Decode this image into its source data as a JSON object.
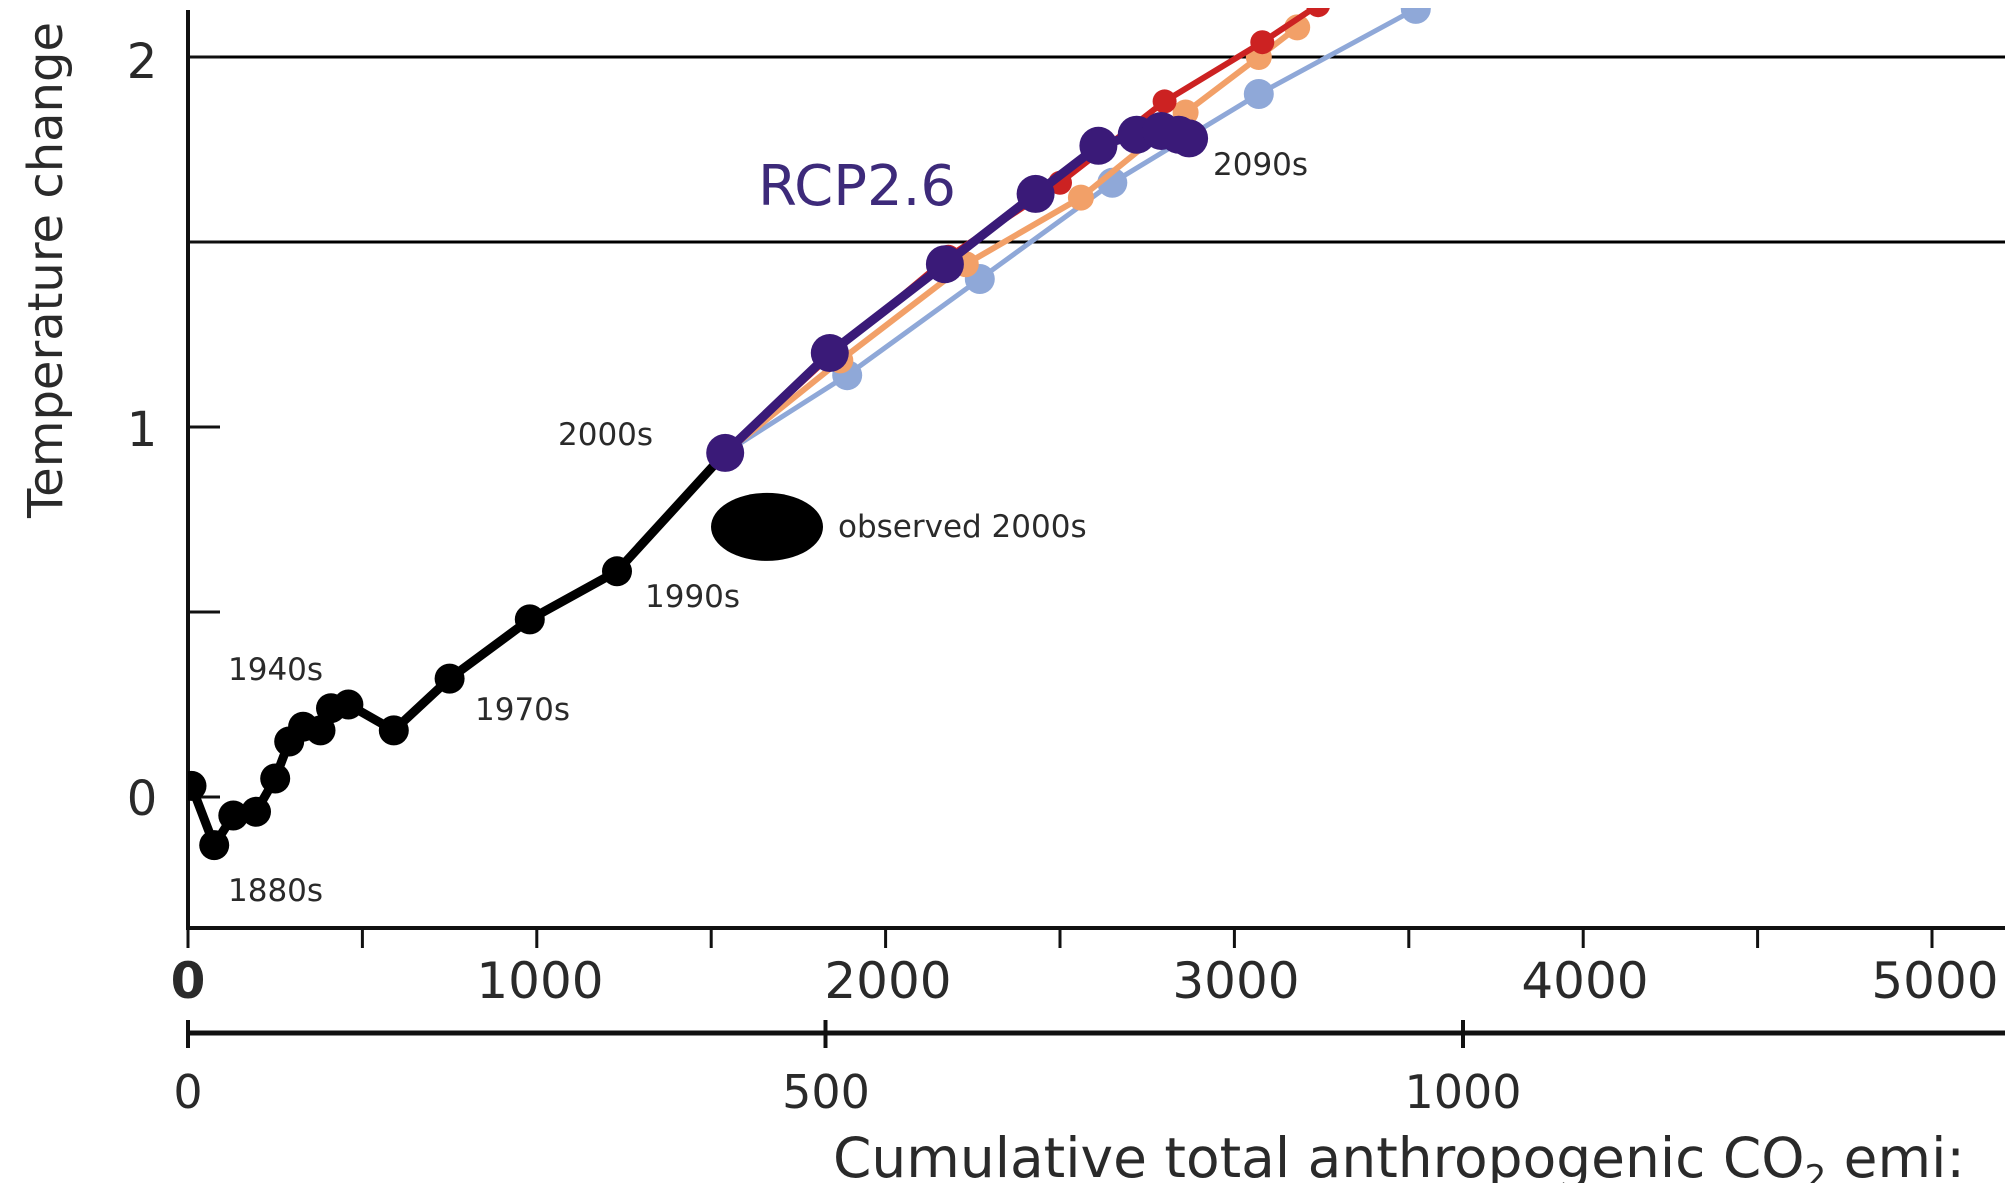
{
  "chart_data": {
    "type": "line",
    "ylabel": "Temperature change",
    "xlabel": "Cumulative total anthropogenic CO",
    "xlabel_subscript": "2",
    "xlabel_suffix": " emi:",
    "x_ticks_primary": [
      "0",
      "1000",
      "2000",
      "3000",
      "4000",
      "5000"
    ],
    "x_ticks_secondary": [
      "0",
      "500",
      "1000"
    ],
    "y_ticks": [
      "0",
      "1",
      "2"
    ],
    "xlim": [
      0,
      5200
    ],
    "ylim": [
      -0.37,
      2.13
    ],
    "reference_lines": [
      1.5,
      2.0
    ],
    "scenario_label": "RCP2.6",
    "annotations": {
      "d1880s": "1880s",
      "d1940s": "1940s",
      "d1970s": "1970s",
      "d1990s": "1990s",
      "d2000s": "2000s",
      "d2090s": "2090s",
      "observed": "observed 2000s"
    },
    "observed_2000s": {
      "x": 1660,
      "y": 0.73,
      "color": "#000000"
    },
    "series": [
      {
        "color": "#000000",
        "x": [
          10,
          75,
          130,
          195,
          250,
          290,
          330,
          380,
          410,
          460,
          590,
          750,
          980,
          1230,
          1540
        ],
        "y": [
          0.03,
          -0.13,
          -0.05,
          -0.04,
          0.05,
          0.15,
          0.19,
          0.18,
          0.24,
          0.25,
          0.18,
          0.32,
          0.48,
          0.61,
          0.93
        ]
      },
      {
        "color": "#8fa8d8",
        "x": [
          1540,
          1890,
          2270,
          2650,
          3070,
          3520
        ],
        "y": [
          0.93,
          1.14,
          1.4,
          1.66,
          1.9,
          2.13
        ]
      },
      {
        "color": "#f2a068",
        "x": [
          1540,
          1870,
          2230,
          2560,
          2860,
          3070,
          3180
        ],
        "y": [
          0.93,
          1.18,
          1.44,
          1.62,
          1.85,
          2.0,
          2.08
        ]
      },
      {
        "color": "#cc2222",
        "x": [
          1540,
          1850,
          2180,
          2500,
          2800,
          3080,
          3240
        ],
        "y": [
          0.93,
          1.2,
          1.46,
          1.66,
          1.88,
          2.04,
          2.14
        ]
      },
      {
        "name": "RCP2.6",
        "color": "#3a1a78",
        "x": [
          1540,
          1840,
          2170,
          2430,
          2610,
          2720,
          2790,
          2840,
          2870
        ],
        "y": [
          0.93,
          1.2,
          1.44,
          1.63,
          1.76,
          1.79,
          1.8,
          1.79,
          1.78
        ]
      }
    ]
  }
}
